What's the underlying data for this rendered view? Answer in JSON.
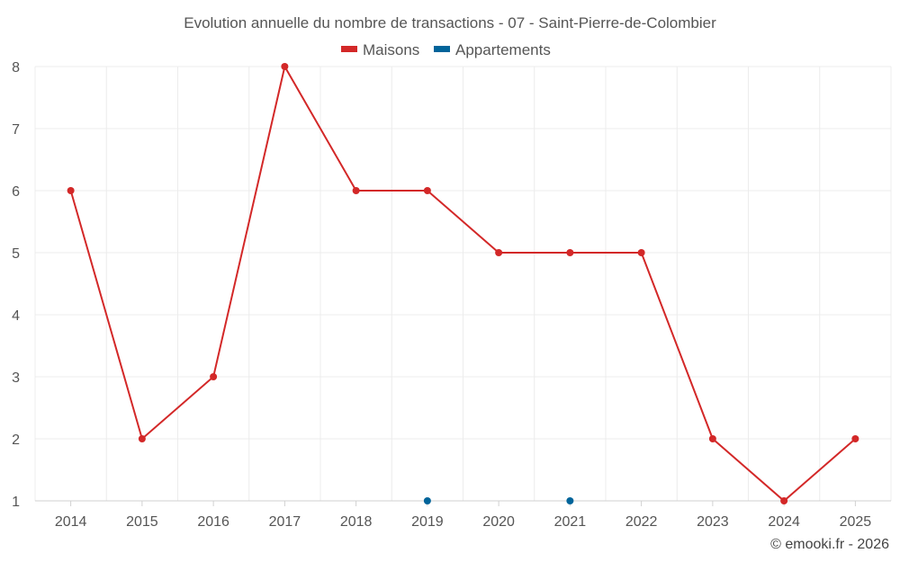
{
  "chart_data": {
    "type": "line",
    "title": "Evolution annuelle du nombre de transactions - 07 - Saint-Pierre-de-Colombier",
    "x": [
      "2014",
      "2015",
      "2016",
      "2017",
      "2018",
      "2019",
      "2020",
      "2021",
      "2022",
      "2023",
      "2024",
      "2025"
    ],
    "series": [
      {
        "name": "Maisons",
        "color": "#d32828",
        "values": [
          6,
          2,
          3,
          8,
          6,
          6,
          5,
          5,
          5,
          2,
          1,
          2
        ]
      },
      {
        "name": "Appartements",
        "color": "#00649a",
        "values": [
          null,
          null,
          null,
          null,
          null,
          1,
          null,
          1,
          null,
          null,
          null,
          null
        ]
      }
    ],
    "yticks": [
      "1",
      "2",
      "3",
      "4",
      "5",
      "6",
      "7",
      "8"
    ],
    "ylim": [
      1,
      8
    ],
    "grid": true,
    "legend": "top-center",
    "xlabel": "",
    "ylabel": ""
  },
  "credit": "© emooki.fr - 2026"
}
